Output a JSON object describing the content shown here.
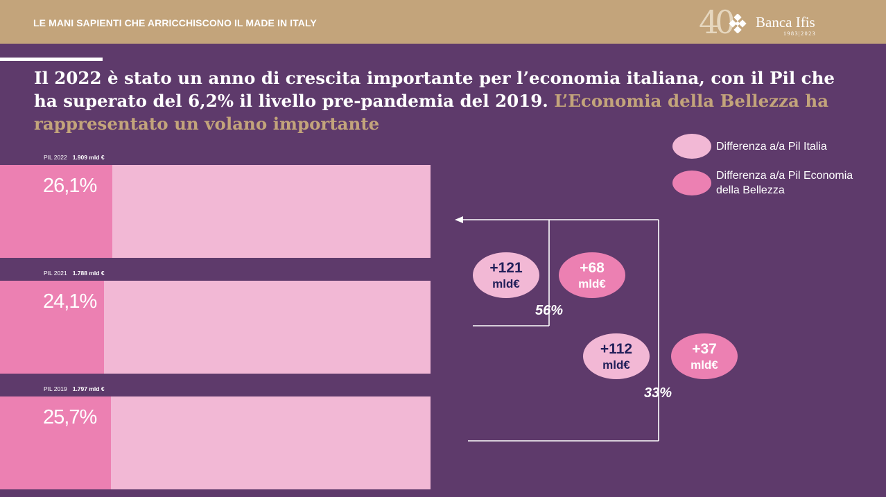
{
  "header": {
    "section_title": "LE MANI SAPIENTI CHE ARRICCHISCONO IL MADE IN ITALY",
    "logo": {
      "number": "40",
      "brand": "Banca Ifis",
      "years": "1983|2023",
      "icon": "diamond-logo-icon"
    }
  },
  "headline": {
    "white_text": "Il 2022 è stato un anno di crescita importante per l’economia italiana, con il Pil che ha superato del 6,2% il livello pre-pandemia del 2019.",
    "gold_text": "L’Economia della Bellezza ha rappresentato un volano importante"
  },
  "colors": {
    "background": "#5e3a6b",
    "topbar": "#c3a47b",
    "light_pink": "#f2b8d5",
    "dark_pink": "#ec80b2",
    "navy": "#22205a"
  },
  "chart_data": {
    "type": "bar",
    "orientation": "horizontal",
    "bars": [
      {
        "label": "PIL 2022",
        "pil": "1.909 mld €",
        "share_value": 26.1,
        "share_label": "26,1%"
      },
      {
        "label": "PIL 2021",
        "pil": "1.788 mld €",
        "share_value": 24.1,
        "share_label": "24,1%"
      },
      {
        "label": "PIL 2019",
        "pil": "1.797 mld €",
        "share_value": 25.7,
        "share_label": "25,7%"
      }
    ],
    "legend": [
      {
        "label": "Differenza a/a Pil Italia",
        "color": "#f2b8d5"
      },
      {
        "label": "Differenza a/a Pil Economia della Bellezza",
        "color": "#ec80b2"
      }
    ],
    "comparisons": [
      {
        "pil_italia": {
          "value": "+121",
          "unit": "mld€"
        },
        "economia_bellezza": {
          "value": "+68",
          "unit": "mld€"
        },
        "share": "56%"
      },
      {
        "pil_italia": {
          "value": "+112",
          "unit": "mld€"
        },
        "economia_bellezza": {
          "value": "+37",
          "unit": "mld€"
        },
        "share": "33%"
      }
    ]
  }
}
